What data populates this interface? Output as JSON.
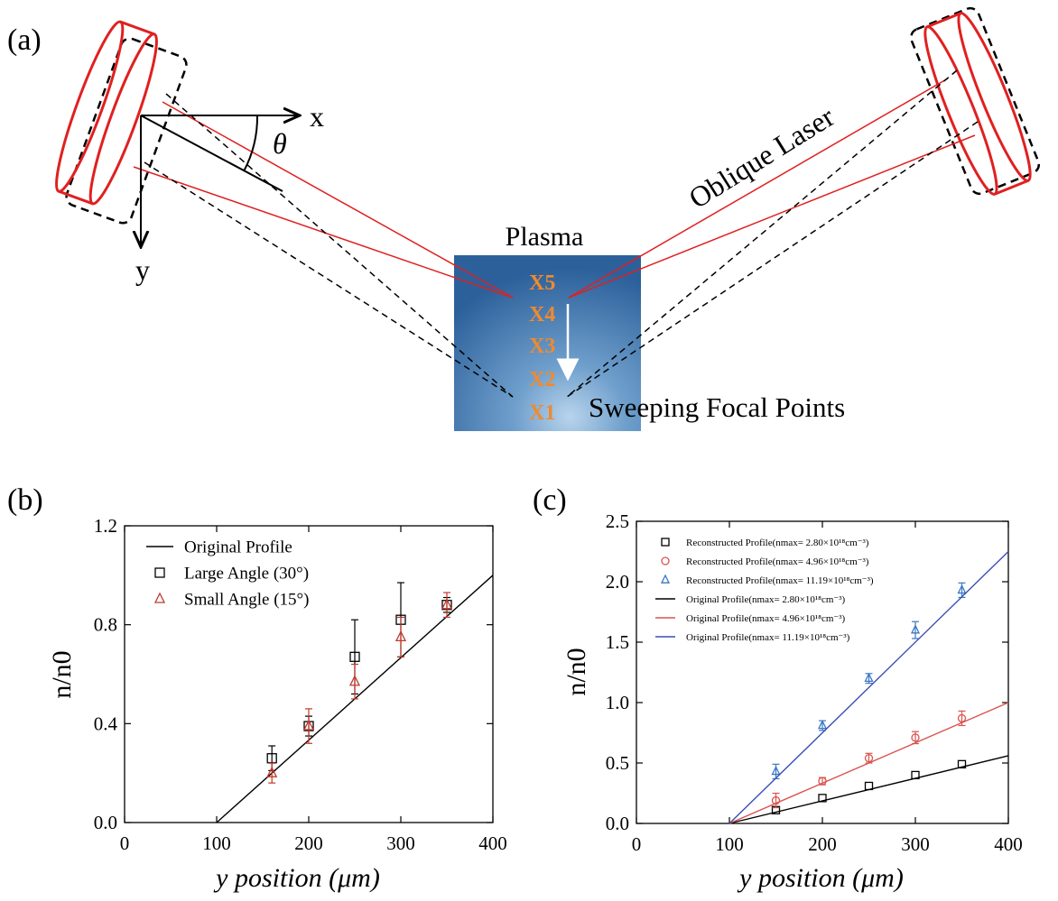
{
  "panel_a": {
    "label": "(a)",
    "axis_x": "x",
    "axis_y": "y",
    "theta": "θ",
    "plasma_label": "Plasma",
    "laser_label": "Oblique Laser",
    "sweep_label": "Sweeping Focal Points",
    "focal_points": [
      "X5",
      "X4",
      "X3",
      "X2",
      "X1"
    ],
    "colors": {
      "laser": "#e02020",
      "focal_text": "#f08a2e",
      "plasma_dark": "#2f6aa3",
      "plasma_light": "#a7c6e2"
    }
  },
  "chart_data": [
    {
      "panel_label": "(b)",
      "type": "scatter",
      "xlabel": "y position (μm)",
      "ylabel": "n/n0",
      "xlim": [
        0,
        400
      ],
      "ylim": [
        0.0,
        1.2
      ],
      "xticks": [
        "0",
        "100",
        "200",
        "300",
        "400"
      ],
      "yticks": [
        "0.0",
        "0.4",
        "0.8",
        "1.2"
      ],
      "legend_placement": "top-left",
      "series": [
        {
          "name": "Original Profile",
          "kind": "line",
          "color": "#000000",
          "x": [
            100,
            400
          ],
          "y": [
            0.0,
            1.0
          ]
        },
        {
          "name": "Large Angle (30°)",
          "kind": "points",
          "marker": "square",
          "color": "#000000",
          "x": [
            160,
            200,
            250,
            300,
            350
          ],
          "y": [
            0.26,
            0.39,
            0.67,
            0.82,
            0.88
          ],
          "err": [
            0.05,
            0.04,
            0.15,
            0.15,
            0.03
          ]
        },
        {
          "name": "Small Angle (15°)",
          "kind": "points",
          "marker": "triangle",
          "color": "#c0392b",
          "x": [
            160,
            200,
            250,
            300,
            350
          ],
          "y": [
            0.2,
            0.39,
            0.57,
            0.75,
            0.88
          ],
          "err": [
            0.04,
            0.07,
            0.07,
            0.08,
            0.05
          ]
        }
      ]
    },
    {
      "panel_label": "(c)",
      "type": "scatter",
      "xlabel": "y position (μm)",
      "ylabel": "n/n0",
      "xlim": [
        0,
        400
      ],
      "ylim": [
        0.0,
        2.5
      ],
      "xticks": [
        "0",
        "100",
        "200",
        "300",
        "400"
      ],
      "yticks": [
        "0.0",
        "0.5",
        "1.0",
        "1.5",
        "2.0",
        "2.5"
      ],
      "legend_placement": "top-left",
      "series": [
        {
          "name": "Reconstructed Profile(nmax= 2.80×10¹⁸cm⁻³)",
          "kind": "points",
          "marker": "square",
          "color": "#000000",
          "x": [
            150,
            200,
            250,
            300,
            350
          ],
          "y": [
            0.11,
            0.21,
            0.31,
            0.4,
            0.49
          ],
          "err": [
            0,
            0,
            0,
            0,
            0
          ]
        },
        {
          "name": "Reconstructed Profile(nmax= 4.96×10¹⁸cm⁻³)",
          "kind": "points",
          "marker": "circle",
          "color": "#d9534f",
          "x": [
            150,
            200,
            250,
            300,
            350
          ],
          "y": [
            0.19,
            0.35,
            0.54,
            0.71,
            0.87
          ],
          "err": [
            0.06,
            0.03,
            0.04,
            0.05,
            0.06
          ]
        },
        {
          "name": "Reconstructed Profile(nmax= 11.19×10¹⁸cm⁻³)",
          "kind": "points",
          "marker": "triangle",
          "color": "#3a78c2",
          "x": [
            150,
            200,
            250,
            300,
            350
          ],
          "y": [
            0.43,
            0.81,
            1.2,
            1.6,
            1.93
          ],
          "err": [
            0.06,
            0.04,
            0.04,
            0.07,
            0.06
          ]
        },
        {
          "name": "Original Profile(nmax= 2.80×10¹⁸cm⁻³)",
          "kind": "line",
          "color": "#000000",
          "x": [
            100,
            400
          ],
          "y": [
            0.0,
            0.56
          ]
        },
        {
          "name": "Original Profile(nmax= 4.96×10¹⁸cm⁻³)",
          "kind": "line",
          "color": "#d9534f",
          "x": [
            100,
            400
          ],
          "y": [
            0.0,
            1.0
          ]
        },
        {
          "name": "Original Profile(nmax= 11.19×10¹⁸cm⁻³)",
          "kind": "line",
          "color": "#3a4fb5",
          "x": [
            100,
            400
          ],
          "y": [
            0.0,
            2.25
          ]
        }
      ]
    }
  ]
}
